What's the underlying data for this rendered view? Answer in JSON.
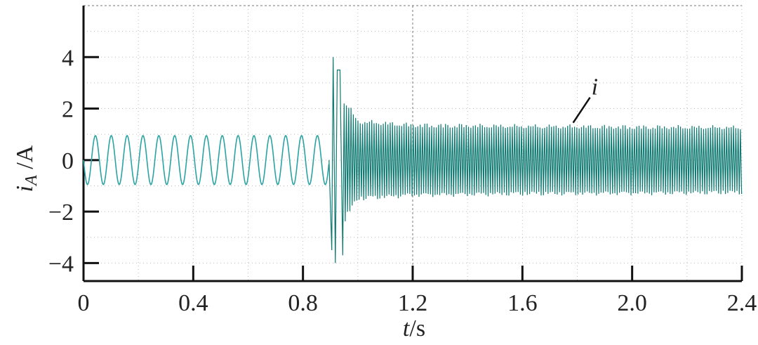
{
  "chart_data": {
    "type": "line",
    "xlabel": {
      "var": "t",
      "unit": "/s"
    },
    "ylabel": {
      "var": "i",
      "sub": "A",
      "unit": " /A"
    },
    "xlim": [
      0,
      2.4
    ],
    "ylim": [
      -4.7,
      6.0
    ],
    "xticks": [
      0,
      0.4,
      0.8,
      1.2,
      1.6,
      2.0,
      2.4
    ],
    "xtick_labels": [
      "0",
      "0.4",
      "0.8",
      "1.2",
      "1.6",
      "2.0",
      "2.4"
    ],
    "yticks": [
      -4,
      -2,
      0,
      2,
      4
    ],
    "ytick_labels": [
      "−4",
      "−2",
      "0",
      "2",
      "4"
    ],
    "grid": "dotted",
    "annotation": {
      "text": "i",
      "x": 1.785,
      "y": 1.45
    },
    "series": [
      {
        "color": "#2ba3a3",
        "segment": "pre-fault",
        "model": "sine",
        "t_range": [
          0,
          0.895
        ],
        "frequency_hz": 17.3,
        "amplitude": 0.95
      },
      {
        "color": "#0f7a72",
        "segment": "post-fault",
        "model": "decaying-oscillation",
        "t_range": [
          0.895,
          2.4
        ],
        "peaks": [
          {
            "t": 0.905,
            "y": -3.5
          },
          {
            "t": 0.91,
            "y": 4.0
          },
          {
            "t": 0.918,
            "y": -4.0
          },
          {
            "t": 0.925,
            "y": 3.5
          },
          {
            "t": 0.935,
            "y": 3.5
          },
          {
            "t": 0.945,
            "y": -3.7
          }
        ],
        "steady_amplitude": 1.4,
        "envelope": [
          {
            "t": 0.95,
            "amp": 2.5
          },
          {
            "t": 1.0,
            "amp": 1.6
          },
          {
            "t": 1.2,
            "amp": 1.45
          },
          {
            "t": 1.6,
            "amp": 1.4
          },
          {
            "t": 2.4,
            "amp": 1.35
          }
        ]
      }
    ]
  }
}
